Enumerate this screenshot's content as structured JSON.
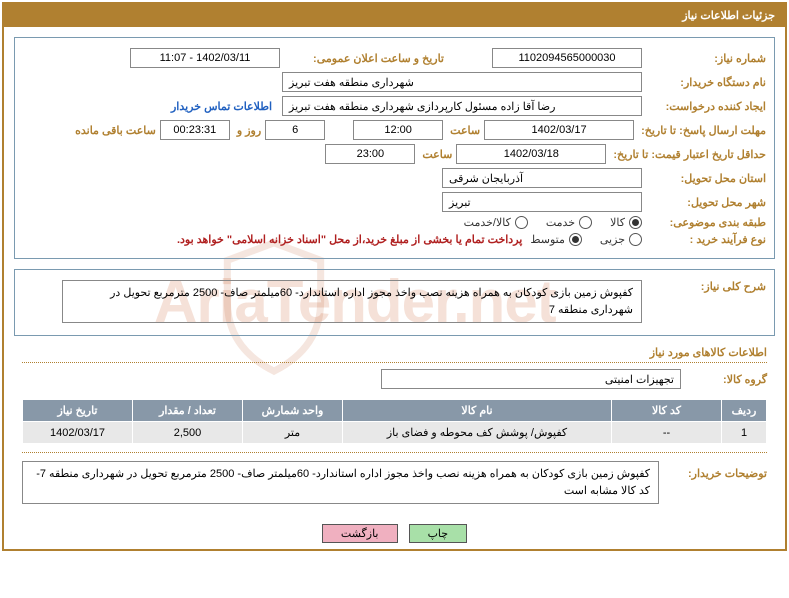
{
  "title_bar": "جزئیات اطلاعات نیاز",
  "colors": {
    "accent": "#b08030",
    "header_bg": "#8898a8",
    "link": "#2060c0",
    "note": "#b02020",
    "btn_green": "#a8e0a8",
    "btn_pink": "#f0b0c0"
  },
  "labels": {
    "need_no": "شماره نیاز:",
    "announce_dt": "تاریخ و ساعت اعلان عمومی:",
    "buyer_org": "نام دستگاه خریدار:",
    "requester": "ایجاد کننده درخواست:",
    "contact_link": "اطلاعات تماس خریدار",
    "resp_deadline": "مهلت ارسال پاسخ: تا تاریخ:",
    "hour": "ساعت",
    "days_and": "روز و",
    "hours_remain": "ساعت باقی مانده",
    "price_validity": "حداقل تاریخ اعتبار قیمت: تا تاریخ:",
    "delivery_province": "استان محل تحویل:",
    "delivery_city": "شهر محل تحویل:",
    "subject_class": "طبقه بندی موضوعی:",
    "purchase_process": "نوع فرآیند خرید :",
    "general_desc": "شرح کلی نیاز:",
    "goods_section": "اطلاعات کالاهای مورد نیاز",
    "goods_group": "گروه کالا:",
    "buyer_notes": "توضیحات خریدار:"
  },
  "fields": {
    "need_no": "1102094565000030",
    "announce_dt": "1402/03/11 - 11:07",
    "buyer_org": "شهرداری منطقه هفت تبریز",
    "requester": "رضا آقا زاده مسئول کارپردازی شهرداری منطقه هفت تبریز",
    "resp_date": "1402/03/17",
    "resp_time": "12:00",
    "remain_days": "6",
    "remain_time": "00:23:31",
    "price_date": "1402/03/18",
    "price_time": "23:00",
    "province": "آذربایجان شرقی",
    "city": "تبریز",
    "goods_group": "تجهیزات امنیتی"
  },
  "radios": {
    "subject": [
      {
        "label": "کالا",
        "checked": true
      },
      {
        "label": "خدمت",
        "checked": false
      },
      {
        "label": "کالا/خدمت",
        "checked": false
      }
    ],
    "process": [
      {
        "label": "جزیی",
        "checked": false
      },
      {
        "label": "متوسط",
        "checked": true
      }
    ]
  },
  "process_note": "پرداخت تمام یا بخشی از مبلغ خرید،از محل \"اسناد خزانه اسلامی\" خواهد بود.",
  "general_desc": "کفپوش زمین بازی کودکان به همراه هزینه نصب واخذ مجوز اداره استاندارد- 60میلمتر صاف- 2500 مترمربع تحویل در شهرداری منطقه 7",
  "table": {
    "columns": [
      "ردیف",
      "کد کالا",
      "نام کالا",
      "واحد شمارش",
      "تعداد / مقدار",
      "تاریخ نیاز"
    ],
    "col_widths": [
      "45px",
      "110px",
      "auto",
      "100px",
      "110px",
      "110px"
    ],
    "rows": [
      [
        "1",
        "--",
        "کفپوش/ پوشش کف محوطه و فضای باز",
        "متر",
        "2,500",
        "1402/03/17"
      ]
    ]
  },
  "buyer_notes": "کفپوش زمین بازی کودکان به همراه هزینه نصب واخذ مجوز اداره استاندارد- 60میلمتر صاف- 2500 مترمربع تحویل در شهرداری منطقه 7- کد کالا مشابه است",
  "buttons": {
    "print": "چاپ",
    "back": "بازگشت"
  }
}
